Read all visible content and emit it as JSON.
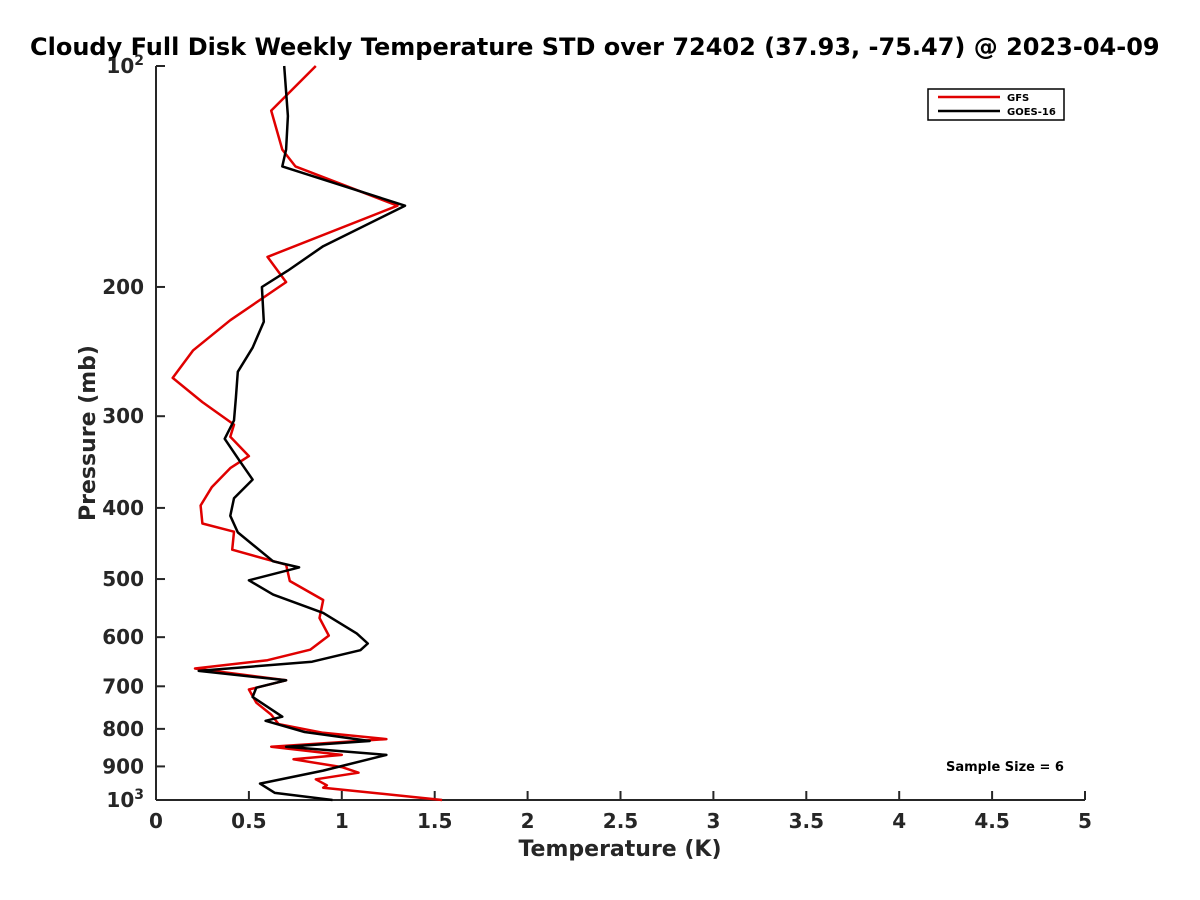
{
  "chart_data": {
    "type": "line",
    "title": "Cloudy Full Disk Weekly Temperature STD over 72402 (37.93, -75.47) @ 2023-04-09",
    "xlabel": "Temperature (K)",
    "ylabel": "Pressure (mb)",
    "xlim": [
      0,
      5
    ],
    "ylim": [
      100,
      1000
    ],
    "yscale": "log",
    "y_reversed": true,
    "xticks": [
      0,
      0.5,
      1,
      1.5,
      2,
      2.5,
      3,
      3.5,
      4,
      4.5,
      5
    ],
    "xtick_labels": [
      "0",
      "0.5",
      "1",
      "1.5",
      "2",
      "2.5",
      "3",
      "3.5",
      "4",
      "4.5",
      "5"
    ],
    "yticks": [
      100,
      200,
      300,
      400,
      500,
      600,
      700,
      800,
      900,
      1000
    ],
    "ytick_labels": [
      {
        "base": "10",
        "exp": "2"
      },
      {
        "base": "200",
        "exp": ""
      },
      {
        "base": "300",
        "exp": ""
      },
      {
        "base": "400",
        "exp": ""
      },
      {
        "base": "500",
        "exp": ""
      },
      {
        "base": "600",
        "exp": ""
      },
      {
        "base": "700",
        "exp": ""
      },
      {
        "base": "800",
        "exp": ""
      },
      {
        "base": "900",
        "exp": ""
      },
      {
        "base": "10",
        "exp": "3"
      }
    ],
    "grid": false,
    "legend_position": "top-right",
    "annotation": "Sample Size = 6",
    "series": [
      {
        "name": "GFS",
        "color": "#e00000",
        "points": [
          [
            0.86,
            100
          ],
          [
            0.62,
            115
          ],
          [
            0.68,
            130
          ],
          [
            0.75,
            137
          ],
          [
            1.3,
            155
          ],
          [
            0.6,
            182
          ],
          [
            0.7,
            197
          ],
          [
            0.4,
            222
          ],
          [
            0.2,
            244
          ],
          [
            0.09,
            266
          ],
          [
            0.25,
            287
          ],
          [
            0.42,
            308
          ],
          [
            0.4,
            320
          ],
          [
            0.5,
            340
          ],
          [
            0.4,
            353
          ],
          [
            0.3,
            375
          ],
          [
            0.24,
            397
          ],
          [
            0.25,
            420
          ],
          [
            0.42,
            431
          ],
          [
            0.41,
            456
          ],
          [
            0.7,
            478
          ],
          [
            0.72,
            503
          ],
          [
            0.9,
            534
          ],
          [
            0.88,
            565
          ],
          [
            0.93,
            597
          ],
          [
            0.83,
            624
          ],
          [
            0.6,
            645
          ],
          [
            0.21,
            662
          ],
          [
            0.7,
            687
          ],
          [
            0.5,
            707
          ],
          [
            0.54,
            737
          ],
          [
            0.62,
            765
          ],
          [
            0.66,
            788
          ],
          [
            0.9,
            810
          ],
          [
            1.24,
            826
          ],
          [
            0.62,
            846
          ],
          [
            1.0,
            868
          ],
          [
            0.74,
            880
          ],
          [
            1.0,
            902
          ],
          [
            1.09,
            918
          ],
          [
            0.86,
            937
          ],
          [
            0.92,
            955
          ],
          [
            0.9,
            962
          ],
          [
            1.54,
            1000
          ]
        ]
      },
      {
        "name": "GOES-16",
        "color": "#000000",
        "points": [
          [
            0.69,
            100
          ],
          [
            0.71,
            117
          ],
          [
            0.7,
            130
          ],
          [
            0.68,
            137
          ],
          [
            1.34,
            155
          ],
          [
            0.9,
            176
          ],
          [
            0.71,
            190
          ],
          [
            0.57,
            200
          ],
          [
            0.58,
            223
          ],
          [
            0.52,
            242
          ],
          [
            0.44,
            261
          ],
          [
            0.43,
            283
          ],
          [
            0.42,
            304
          ],
          [
            0.37,
            322
          ],
          [
            0.45,
            345
          ],
          [
            0.52,
            366
          ],
          [
            0.42,
            388
          ],
          [
            0.4,
            410
          ],
          [
            0.44,
            432
          ],
          [
            0.63,
            473
          ],
          [
            0.77,
            482
          ],
          [
            0.5,
            502
          ],
          [
            0.63,
            525
          ],
          [
            0.9,
            556
          ],
          [
            1.08,
            593
          ],
          [
            1.14,
            612
          ],
          [
            1.1,
            625
          ],
          [
            0.84,
            648
          ],
          [
            0.23,
            667
          ],
          [
            0.7,
            687
          ],
          [
            0.54,
            703
          ],
          [
            0.52,
            724
          ],
          [
            0.68,
            770
          ],
          [
            0.59,
            780
          ],
          [
            0.8,
            808
          ],
          [
            1.15,
            831
          ],
          [
            0.7,
            846
          ],
          [
            1.24,
            868
          ],
          [
            0.9,
            912
          ],
          [
            0.56,
            950
          ],
          [
            0.64,
            978
          ],
          [
            0.95,
            1000
          ]
        ]
      }
    ]
  }
}
